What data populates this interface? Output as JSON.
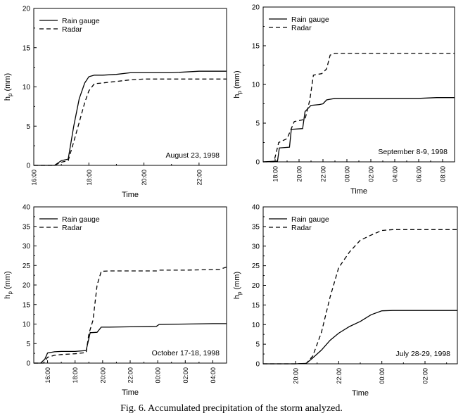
{
  "figure": {
    "caption": "Fig. 6. Accumulated precipitation of the storm analyzed."
  },
  "chart_data": [
    {
      "type": "line",
      "title": "August 23, 1998",
      "xlabel": "Time",
      "ylabel": "h",
      "ylabel_sub": "p",
      "ylabel_unit": "(mm)",
      "xlim": [
        16.0,
        23.0
      ],
      "ylim": [
        0,
        20
      ],
      "x_ticks": [
        16,
        18,
        20,
        22
      ],
      "x_tick_labels": [
        "16:00",
        "18:00",
        "20:00",
        "22:00"
      ],
      "y_ticks": [
        0,
        5,
        10,
        15,
        20
      ],
      "y_tick_labels": [
        "0",
        "5",
        "10",
        "15",
        "20"
      ],
      "legend": "top-left",
      "series": [
        {
          "name": "Rain gauge",
          "style": "solid",
          "x": [
            16.0,
            16.75,
            17.0,
            17.25,
            17.45,
            17.65,
            17.85,
            18.0,
            18.2,
            18.5,
            19.0,
            19.5,
            20.0,
            21.0,
            22.0,
            23.0
          ],
          "y": [
            0,
            0,
            0.6,
            0.8,
            5.0,
            8.5,
            10.5,
            11.3,
            11.5,
            11.5,
            11.6,
            11.8,
            11.8,
            11.8,
            12.0,
            12.0
          ]
        },
        {
          "name": "Radar",
          "style": "dashed",
          "x": [
            16.0,
            16.75,
            17.0,
            17.25,
            17.45,
            17.65,
            17.85,
            18.0,
            18.2,
            18.5,
            19.0,
            19.5,
            20.0,
            21.0,
            22.0,
            23.0
          ],
          "y": [
            0,
            0,
            0.4,
            0.6,
            3.0,
            5.5,
            8.0,
            9.5,
            10.4,
            10.5,
            10.7,
            10.9,
            11.0,
            11.0,
            11.0,
            11.0
          ]
        }
      ]
    },
    {
      "type": "line",
      "title": "September 8-9, 1998",
      "xlabel": "Time",
      "ylabel": "h",
      "ylabel_sub": "p",
      "ylabel_unit": "(mm)",
      "xlim": [
        17.0,
        33.0
      ],
      "ylim": [
        0,
        20
      ],
      "x_ticks": [
        18,
        20,
        22,
        24,
        26,
        28,
        30,
        32
      ],
      "x_tick_labels": [
        "18:00",
        "20:00",
        "22:00",
        "00:00",
        "02:00",
        "04:00",
        "06:00",
        "08:00"
      ],
      "y_ticks": [
        0,
        5,
        10,
        15,
        20
      ],
      "y_tick_labels": [
        "0",
        "5",
        "10",
        "15",
        "20"
      ],
      "legend": "top-left",
      "series": [
        {
          "name": "Rain gauge",
          "style": "solid",
          "x": [
            17.0,
            18.2,
            18.35,
            19.2,
            19.35,
            20.3,
            20.5,
            21.0,
            21.7,
            22.0,
            22.3,
            23.0,
            26.0,
            30.0,
            31.5,
            33.0
          ],
          "y": [
            0,
            0.1,
            1.8,
            1.9,
            4.2,
            4.3,
            6.5,
            7.3,
            7.4,
            7.5,
            8.0,
            8.2,
            8.2,
            8.2,
            8.3,
            8.3
          ]
        },
        {
          "name": "Radar",
          "style": "dashed",
          "x": [
            17.0,
            17.9,
            18.3,
            19.0,
            19.6,
            20.5,
            20.9,
            21.2,
            21.9,
            22.3,
            22.6,
            23.0,
            26.0,
            33.0
          ],
          "y": [
            0,
            0,
            2.5,
            3.0,
            5.2,
            5.5,
            8.0,
            11.2,
            11.4,
            12.0,
            13.8,
            14.0,
            14.0,
            14.0
          ]
        }
      ]
    },
    {
      "type": "line",
      "title": "October 17-18, 1998",
      "xlabel": "Time",
      "ylabel": "h",
      "ylabel_sub": "p",
      "ylabel_unit": "(mm)",
      "xlim": [
        15.0,
        29.0
      ],
      "ylim": [
        0,
        40
      ],
      "x_ticks": [
        16,
        18,
        20,
        22,
        24,
        26,
        28
      ],
      "x_tick_labels": [
        "16:00",
        "18:00",
        "20:00",
        "22:00",
        "00:00",
        "02:00",
        "04:00"
      ],
      "y_ticks": [
        0,
        5,
        10,
        15,
        20,
        25,
        30,
        35,
        40
      ],
      "y_tick_labels": [
        "0",
        "5",
        "10",
        "15",
        "20",
        "25",
        "30",
        "35",
        "40"
      ],
      "legend": "top-left",
      "series": [
        {
          "name": "Rain gauge",
          "style": "solid",
          "x": [
            15.0,
            15.5,
            15.8,
            16.0,
            16.5,
            17.0,
            18.0,
            18.8,
            19.1,
            19.2,
            19.6,
            19.9,
            20.5,
            22.0,
            23.9,
            24.1,
            26.0,
            28.0,
            29.0
          ],
          "y": [
            0,
            0,
            1.0,
            2.6,
            2.9,
            3.0,
            3.0,
            3.2,
            7.8,
            7.8,
            7.9,
            9.2,
            9.2,
            9.3,
            9.4,
            9.9,
            10.0,
            10.1,
            10.1
          ]
        },
        {
          "name": "Radar",
          "style": "dashed",
          "x": [
            15.0,
            15.7,
            16.0,
            16.5,
            17.0,
            18.0,
            18.8,
            19.0,
            19.3,
            19.6,
            19.9,
            20.5,
            22.0,
            23.9,
            24.1,
            26.0,
            28.5,
            29.0
          ],
          "y": [
            0,
            0,
            1.5,
            2.0,
            2.2,
            2.4,
            2.7,
            7.5,
            11.0,
            20.0,
            23.5,
            23.6,
            23.6,
            23.6,
            23.8,
            23.8,
            24.0,
            24.6
          ]
        }
      ]
    },
    {
      "type": "line",
      "title": "July 28-29, 1998",
      "xlabel": "Time",
      "ylabel": "h",
      "ylabel_sub": "p",
      "ylabel_unit": "(mm)",
      "xlim": [
        18.5,
        27.5
      ],
      "ylim": [
        0,
        40
      ],
      "x_ticks": [
        20,
        22,
        24,
        26
      ],
      "x_tick_labels": [
        "20:00",
        "22:00",
        "00:00",
        "02:00"
      ],
      "y_ticks": [
        0,
        5,
        10,
        15,
        20,
        25,
        30,
        35,
        40
      ],
      "y_tick_labels": [
        "0",
        "5",
        "10",
        "15",
        "20",
        "25",
        "30",
        "35",
        "40"
      ],
      "legend": "top-left",
      "series": [
        {
          "name": "Rain gauge",
          "style": "solid",
          "x": [
            18.5,
            20.0,
            20.5,
            20.8,
            21.2,
            21.6,
            22.0,
            22.5,
            23.0,
            23.5,
            24.0,
            24.5,
            25.0,
            26.0,
            27.5
          ],
          "y": [
            0,
            0,
            0.1,
            1.5,
            3.5,
            6.0,
            7.8,
            9.5,
            10.8,
            12.5,
            13.5,
            13.6,
            13.6,
            13.6,
            13.6
          ]
        },
        {
          "name": "Radar",
          "style": "dashed",
          "x": [
            18.5,
            20.0,
            20.5,
            20.8,
            21.2,
            21.6,
            22.0,
            22.5,
            23.0,
            23.5,
            24.0,
            24.5,
            25.0,
            26.0,
            27.5
          ],
          "y": [
            0,
            0,
            0.1,
            2.0,
            8.0,
            17.0,
            24.5,
            28.5,
            31.5,
            32.8,
            34.0,
            34.2,
            34.2,
            34.2,
            34.2
          ]
        }
      ]
    }
  ]
}
